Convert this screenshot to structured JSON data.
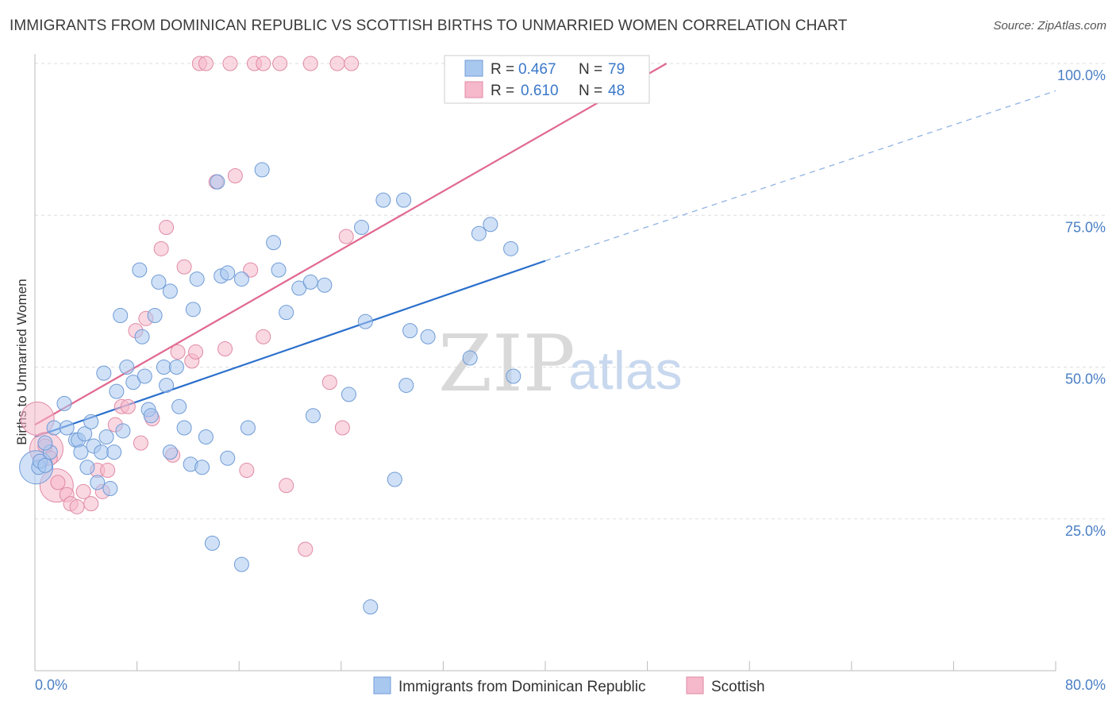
{
  "title": "IMMIGRANTS FROM DOMINICAN REPUBLIC VS SCOTTISH BIRTHS TO UNMARRIED WOMEN CORRELATION CHART",
  "source": "Source: ZipAtlas.com",
  "watermark": {
    "zip": "ZIP",
    "atlas": "atlas"
  },
  "legend": {
    "rows": [
      {
        "r_label": "R = ",
        "r_value": "0.467",
        "n_label": "N = ",
        "n_value": "79",
        "color": "#a9c8f0"
      },
      {
        "r_label": "R = ",
        "r_value": "0.610",
        "n_label": "N = ",
        "n_value": "48",
        "color": "#f6b8cb"
      }
    ]
  },
  "colors": {
    "blue_fill": "#a9c8f0",
    "blue_stroke": "#6f9bd6",
    "blue_line": "#2a6fcc",
    "pink_fill": "#f6b8cb",
    "pink_stroke": "#e08aa6",
    "pink_line": "#e0688f",
    "grid": "#dddddd",
    "tick_label": "#4a7fc4"
  },
  "chart_data": {
    "type": "scatter",
    "title": "IMMIGRANTS FROM DOMINICAN REPUBLIC VS SCOTTISH BIRTHS TO UNMARRIED WOMEN CORRELATION CHART",
    "xlabel": "",
    "ylabel": "Births to Unmarried Women",
    "xlim": [
      0,
      80
    ],
    "ylim": [
      0,
      100
    ],
    "x_tick_labels": [
      "0.0%",
      "80.0%"
    ],
    "y_tick_labels": [
      "25.0%",
      "50.0%",
      "75.0%",
      "100.0%"
    ],
    "y_ticks": [
      25,
      50,
      75,
      100
    ],
    "grid": true,
    "legend_position": "top-center",
    "series": [
      {
        "name": "Immigrants from Dominican Republic",
        "R": 0.467,
        "N": 79,
        "trend": {
          "x": [
            0,
            40
          ],
          "y": [
            38.5,
            67.5
          ],
          "dashed_extension_to": [
            80,
            95.5
          ]
        },
        "points": [
          [
            0.3,
            33.5
          ],
          [
            0.4,
            34.5
          ],
          [
            0.8,
            33.8
          ],
          [
            1.2,
            36
          ],
          [
            0.8,
            37.5
          ],
          [
            1.5,
            40
          ],
          [
            2.3,
            44
          ],
          [
            2.5,
            40
          ],
          [
            3.2,
            38
          ],
          [
            3.4,
            38
          ],
          [
            3.6,
            36
          ],
          [
            3.9,
            39
          ],
          [
            4.1,
            33.5
          ],
          [
            4.4,
            41
          ],
          [
            4.6,
            37
          ],
          [
            4.9,
            31
          ],
          [
            5.2,
            36
          ],
          [
            5.6,
            38.5
          ],
          [
            5.9,
            30
          ],
          [
            6.2,
            36
          ],
          [
            6.4,
            46
          ],
          [
            5.4,
            49
          ],
          [
            6.7,
            58.5
          ],
          [
            6.9,
            39.5
          ],
          [
            7.2,
            50
          ],
          [
            7.7,
            47.5
          ],
          [
            8.2,
            66
          ],
          [
            8.4,
            55
          ],
          [
            8.6,
            48.5
          ],
          [
            8.9,
            43
          ],
          [
            9.1,
            42
          ],
          [
            9.4,
            58.5
          ],
          [
            9.7,
            64
          ],
          [
            10.1,
            50
          ],
          [
            10.3,
            47
          ],
          [
            10.6,
            36
          ],
          [
            10.6,
            62.5
          ],
          [
            11.1,
            50
          ],
          [
            11.3,
            43.5
          ],
          [
            11.7,
            40
          ],
          [
            12.2,
            34
          ],
          [
            12.4,
            59.5
          ],
          [
            12.7,
            64.5
          ],
          [
            13.1,
            33.5
          ],
          [
            13.4,
            38.5
          ],
          [
            13.9,
            21
          ],
          [
            14.3,
            80.5
          ],
          [
            14.6,
            65
          ],
          [
            15.1,
            65.5
          ],
          [
            15.1,
            35
          ],
          [
            16.2,
            64.5
          ],
          [
            16.2,
            17.5
          ],
          [
            16.7,
            40
          ],
          [
            17.8,
            82.5
          ],
          [
            18.7,
            70.5
          ],
          [
            19.1,
            66
          ],
          [
            19.7,
            59
          ],
          [
            20.7,
            63
          ],
          [
            21.6,
            64
          ],
          [
            21.8,
            42
          ],
          [
            22.7,
            63.5
          ],
          [
            24.6,
            45.5
          ],
          [
            25.6,
            73
          ],
          [
            25.9,
            57.5
          ],
          [
            26.3,
            10.5
          ],
          [
            27.3,
            77.5
          ],
          [
            28.2,
            31.5
          ],
          [
            28.9,
            77.5
          ],
          [
            29.1,
            47
          ],
          [
            29.4,
            56
          ],
          [
            30.8,
            55
          ],
          [
            34.1,
            51.5
          ],
          [
            34.8,
            72
          ],
          [
            35.7,
            73.5
          ],
          [
            37.3,
            69.5
          ],
          [
            37.5,
            48.5
          ]
        ],
        "big_points": [
          [
            0.1,
            33.5
          ]
        ]
      },
      {
        "name": "Scottish",
        "R": 0.61,
        "N": 48,
        "trend": {
          "x": [
            0,
            49.5
          ],
          "y": [
            40.5,
            100
          ]
        },
        "points": [
          [
            0.8,
            37
          ],
          [
            1.2,
            35
          ],
          [
            1.8,
            31
          ],
          [
            2.5,
            29
          ],
          [
            2.8,
            27.5
          ],
          [
            3.3,
            27
          ],
          [
            3.8,
            29.5
          ],
          [
            4.4,
            27.5
          ],
          [
            4.9,
            33
          ],
          [
            5.3,
            29.5
          ],
          [
            5.7,
            33
          ],
          [
            6.3,
            40.5
          ],
          [
            6.8,
            43.5
          ],
          [
            7.3,
            43.5
          ],
          [
            7.9,
            56
          ],
          [
            8.3,
            37.5
          ],
          [
            8.7,
            58
          ],
          [
            9.2,
            41.5
          ],
          [
            9.9,
            69.5
          ],
          [
            10.3,
            73
          ],
          [
            10.8,
            35.5
          ],
          [
            11.2,
            52.5
          ],
          [
            11.7,
            66.5
          ],
          [
            12.3,
            51
          ],
          [
            12.6,
            52.5
          ],
          [
            14.2,
            80.5
          ],
          [
            14.9,
            53
          ],
          [
            15.7,
            81.5
          ],
          [
            16.6,
            33
          ],
          [
            16.9,
            66
          ],
          [
            17.9,
            55
          ],
          [
            19.7,
            30.5
          ],
          [
            21.2,
            20
          ],
          [
            23.1,
            47.5
          ],
          [
            24.1,
            40
          ],
          [
            24.4,
            71.5
          ],
          [
            12.9,
            100
          ],
          [
            13.4,
            100
          ],
          [
            15.3,
            100
          ],
          [
            17.2,
            100
          ],
          [
            17.9,
            100
          ],
          [
            19.2,
            100
          ],
          [
            21.6,
            100
          ],
          [
            23.7,
            100
          ],
          [
            24.8,
            100
          ],
          [
            34.6,
            100
          ],
          [
            39.6,
            100
          ],
          [
            42.5,
            100
          ]
        ],
        "big_points": [
          [
            0.2,
            41.5
          ],
          [
            1.7,
            30.5
          ],
          [
            0.9,
            36.5
          ]
        ]
      }
    ]
  },
  "bottom_legend": {
    "items": [
      {
        "label": "Immigrants from Dominican Republic",
        "color": "#a9c8f0"
      },
      {
        "label": "Scottish",
        "color": "#f6b8cb"
      }
    ]
  }
}
